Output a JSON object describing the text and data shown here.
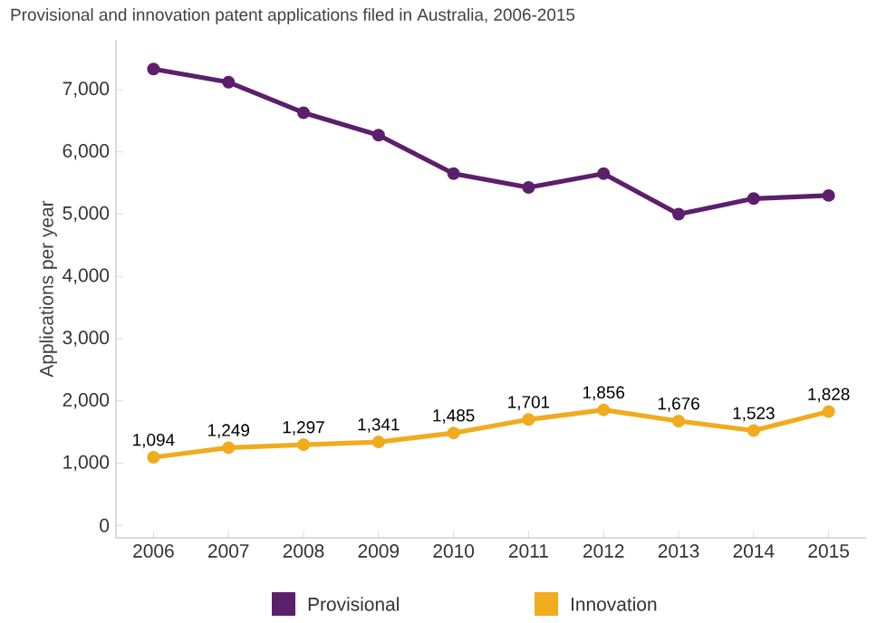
{
  "chart_data": {
    "type": "line",
    "title": "Provisional and innovation patent applications filed in Australia, 2006-2015",
    "ylabel": "Applications per year",
    "categories": [
      "2006",
      "2007",
      "2008",
      "2009",
      "2010",
      "2011",
      "2012",
      "2013",
      "2014",
      "2015"
    ],
    "series": [
      {
        "name": "Provisional",
        "color": "#5c1f6b",
        "values": [
          7330,
          7120,
          6630,
          6270,
          5650,
          5430,
          5650,
          5000,
          5250,
          5300
        ]
      },
      {
        "name": "Innovation",
        "color": "#f0ab1e",
        "values": [
          1094,
          1249,
          1297,
          1341,
          1485,
          1701,
          1856,
          1676,
          1523,
          1828
        ],
        "value_labels": [
          "1,094",
          "1,249",
          "1,297",
          "1,341",
          "1,485",
          "1,701",
          "1,856",
          "1,676",
          "1,523",
          "1,828"
        ]
      }
    ],
    "ylim": [
      -200,
      7800
    ],
    "yticks": [
      {
        "value": 0,
        "label": "0"
      },
      {
        "value": 1000,
        "label": "1,000"
      },
      {
        "value": 2000,
        "label": "2,000"
      },
      {
        "value": 3000,
        "label": "3,000"
      },
      {
        "value": 4000,
        "label": "4,000"
      },
      {
        "value": 5000,
        "label": "5,000"
      },
      {
        "value": 6000,
        "label": "6,000"
      },
      {
        "value": 7000,
        "label": "7,000"
      }
    ],
    "legend": "bottom",
    "marker": "circle",
    "line_style": "solid",
    "grid": false
  }
}
